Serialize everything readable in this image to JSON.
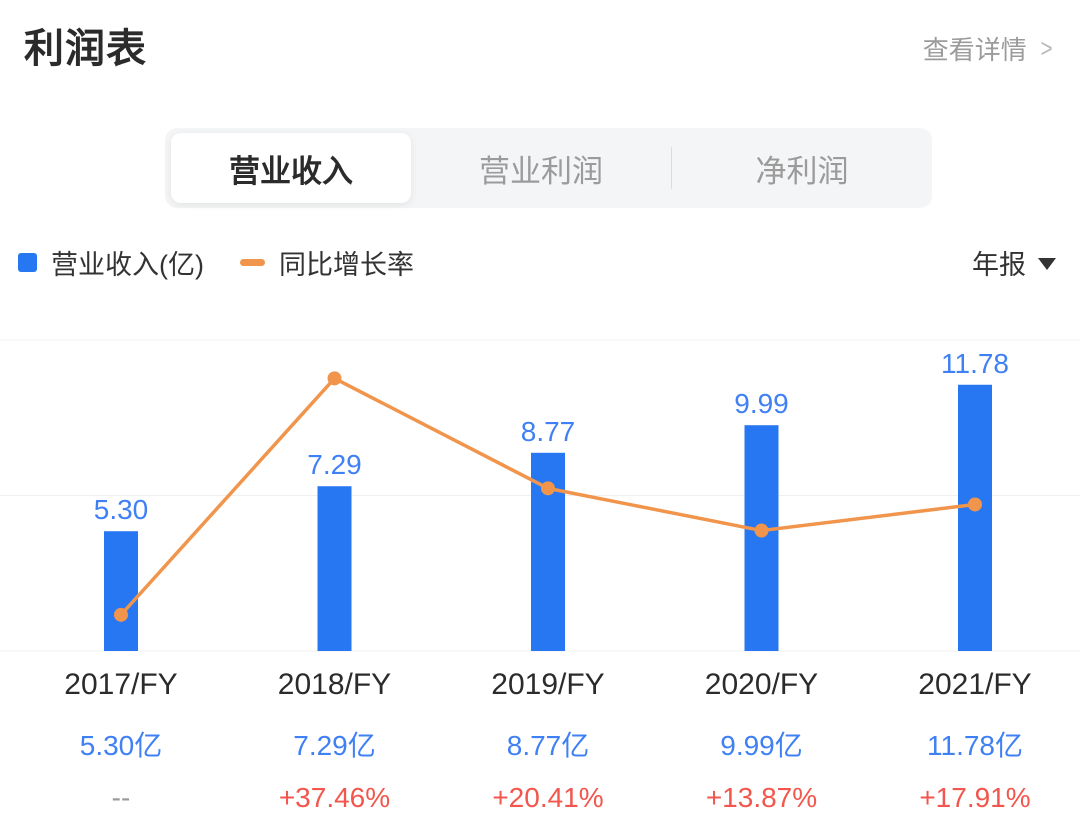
{
  "header": {
    "title": "利润表",
    "details_label": "查看详情",
    "details_chevron": ">"
  },
  "tabs": {
    "items": [
      {
        "label": "营业收入",
        "active": true
      },
      {
        "label": "营业利润",
        "active": false
      },
      {
        "label": "净利润",
        "active": false
      }
    ]
  },
  "legend": {
    "bar_label": "营业收入(亿)",
    "line_label": "同比增长率",
    "period_label": "年报"
  },
  "colors": {
    "bar_blue": "#2777F2",
    "label_blue": "#4080F5",
    "line_orange": "#F0954B",
    "growth_red": "#F2564D",
    "dark_text": "#2B2B2B",
    "muted_gray": "#999999",
    "gridline": "#EFEFEF",
    "tab_bg": "#F4F5F6"
  },
  "chart_data": {
    "type": "bar",
    "subtype": "bar+line combo",
    "title": "营业收入 (利润表)",
    "categories": [
      "2017/FY",
      "2018/FY",
      "2019/FY",
      "2020/FY",
      "2021/FY"
    ],
    "series": [
      {
        "name": "营业收入(亿)",
        "type": "bar",
        "values": [
          5.3,
          7.29,
          8.77,
          9.99,
          11.78
        ],
        "data_labels": [
          "5.30",
          "7.29",
          "8.77",
          "9.99",
          "11.78"
        ],
        "axis_range": [
          0,
          13.76
        ]
      },
      {
        "name": "同比增长率",
        "type": "line",
        "values_pct": [
          0.8,
          37.46,
          20.41,
          13.87,
          17.91
        ],
        "first_point_estimated_from_plot": true,
        "axis_range_pct": [
          0,
          40
        ]
      }
    ],
    "grid": "3 faint horizontal lines, no tick labels",
    "legend_position": "top-left"
  },
  "table": {
    "revenue_row": [
      "5.30亿",
      "7.29亿",
      "8.77亿",
      "9.99亿",
      "11.78亿"
    ],
    "growth_row": [
      "--",
      "+37.46%",
      "+20.41%",
      "+13.87%",
      "+17.91%"
    ],
    "no_data_marker": "--"
  }
}
